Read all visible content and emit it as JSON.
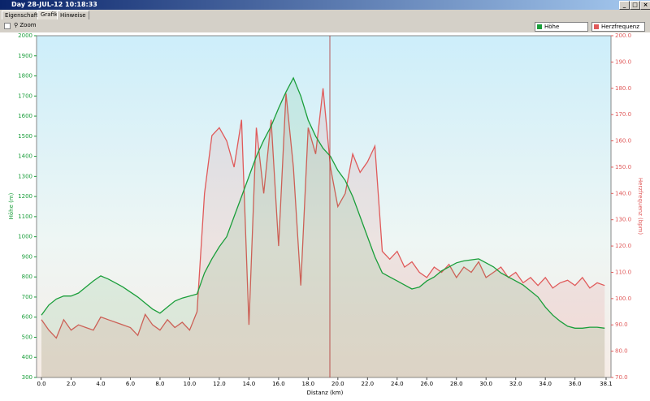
{
  "window": {
    "title": "Day 28-JUL-12 10:18:33",
    "tabs": [
      "Eigenschaften",
      "Grafik",
      "Hinweise"
    ],
    "zoom": "Zoom"
  },
  "chart_data": {
    "type": "line",
    "x_label": "Distanz  (km)",
    "y_label": "Höhe (m)",
    "y2_label": "Herzfrequenz (bpm)",
    "x": [
      0,
      0.5,
      1,
      1.5,
      2,
      2.5,
      3,
      3.5,
      4,
      4.5,
      5,
      5.5,
      6,
      6.5,
      7,
      7.5,
      8,
      8.5,
      9,
      9.5,
      10,
      10.5,
      11,
      11.5,
      12,
      12.5,
      13,
      13.5,
      14,
      14.5,
      15,
      15.5,
      16,
      16.5,
      17,
      17.5,
      18,
      18.5,
      19,
      19.5,
      20,
      20.5,
      21,
      21.5,
      22,
      22.5,
      23,
      23.5,
      24,
      24.5,
      25,
      25.5,
      26,
      26.5,
      27,
      27.5,
      28,
      28.5,
      29,
      29.5,
      30,
      30.5,
      31,
      31.5,
      32,
      32.5,
      33,
      33.5,
      34,
      34.5,
      35,
      35.5,
      36,
      36.5,
      37,
      37.5,
      38
    ],
    "series": [
      {
        "name": "Höhe",
        "color": "#1a9e3a",
        "values": [
          610,
          660,
          690,
          705,
          705,
          720,
          750,
          780,
          805,
          790,
          770,
          750,
          725,
          700,
          670,
          640,
          620,
          650,
          680,
          695,
          705,
          715,
          820,
          890,
          950,
          1000,
          1100,
          1200,
          1300,
          1400,
          1480,
          1550,
          1640,
          1720,
          1790,
          1700,
          1580,
          1500,
          1440,
          1400,
          1330,
          1280,
          1200,
          1100,
          1000,
          900,
          820,
          800,
          780,
          760,
          740,
          750,
          780,
          800,
          830,
          850,
          870,
          880,
          885,
          890,
          870,
          850,
          820,
          800,
          780,
          760,
          730,
          700,
          650,
          610,
          580,
          555,
          545,
          545,
          550,
          550,
          545
        ]
      },
      {
        "name": "Herzfrequenz",
        "color": "#e05a5a",
        "axis": "y2",
        "values": [
          92,
          88,
          85,
          92,
          88,
          90,
          89,
          88,
          93,
          92,
          91,
          90,
          89,
          86,
          94,
          90,
          88,
          92,
          89,
          91,
          88,
          95,
          140,
          162,
          165,
          160,
          150,
          168,
          90,
          165,
          140,
          168,
          120,
          178,
          150,
          105,
          165,
          155,
          180,
          150,
          135,
          140,
          155,
          148,
          152,
          158,
          118,
          115,
          118,
          112,
          114,
          110,
          108,
          112,
          110,
          113,
          108,
          112,
          110,
          114,
          108,
          110,
          112,
          108,
          110,
          106,
          108,
          105,
          108,
          104,
          106,
          107,
          105,
          108,
          104,
          106,
          105
        ]
      }
    ],
    "xlim": [
      -0.33,
      38.43
    ],
    "xticks": [
      {
        "value": 0,
        "label": "0.0"
      },
      {
        "value": 2,
        "label": "2.0"
      },
      {
        "value": 4,
        "label": "4.0"
      },
      {
        "value": 6,
        "label": "6.0"
      },
      {
        "value": 8,
        "label": "8.0"
      },
      {
        "value": 10,
        "label": "10.0"
      },
      {
        "value": 12,
        "label": "12.0"
      },
      {
        "value": 14,
        "label": "14.0"
      },
      {
        "value": 16,
        "label": "16.0"
      },
      {
        "value": 18,
        "label": "18.0"
      },
      {
        "value": 20,
        "label": "20.0"
      },
      {
        "value": 22,
        "label": "22.0"
      },
      {
        "value": 24,
        "label": "24.0"
      },
      {
        "value": 26,
        "label": "26.0"
      },
      {
        "value": 28,
        "label": "28.0"
      },
      {
        "value": 30,
        "label": "30.0"
      },
      {
        "value": 32,
        "label": "32.0"
      },
      {
        "value": 34,
        "label": "34.0"
      },
      {
        "value": 36,
        "label": "36.0"
      },
      {
        "value": 38.1,
        "label": "38.1"
      }
    ],
    "ylim": [
      300,
      2000
    ],
    "yticks": [
      300,
      400,
      500,
      600,
      700,
      800,
      900,
      1000,
      1100,
      1200,
      1300,
      1400,
      1500,
      1600,
      1700,
      1800,
      1900,
      2000
    ],
    "y2lim": [
      70,
      200
    ],
    "y2ticks": [
      {
        "value": 70,
        "label": "70.0"
      },
      {
        "value": 80,
        "label": "80.0"
      },
      {
        "value": 90,
        "label": "90.0"
      },
      {
        "value": 100,
        "label": "100.0"
      },
      {
        "value": 110,
        "label": "110.0"
      },
      {
        "value": 120,
        "label": "120.0"
      },
      {
        "value": 130,
        "label": "130.0"
      },
      {
        "value": 140,
        "label": "140.0"
      },
      {
        "value": 150,
        "label": "150.0"
      },
      {
        "value": 160,
        "label": "160.0"
      },
      {
        "value": 170,
        "label": "170.0"
      },
      {
        "value": 180,
        "label": "180.0"
      },
      {
        "value": 190,
        "label": "190.0"
      },
      {
        "value": 200,
        "label": "200.0"
      }
    ]
  }
}
